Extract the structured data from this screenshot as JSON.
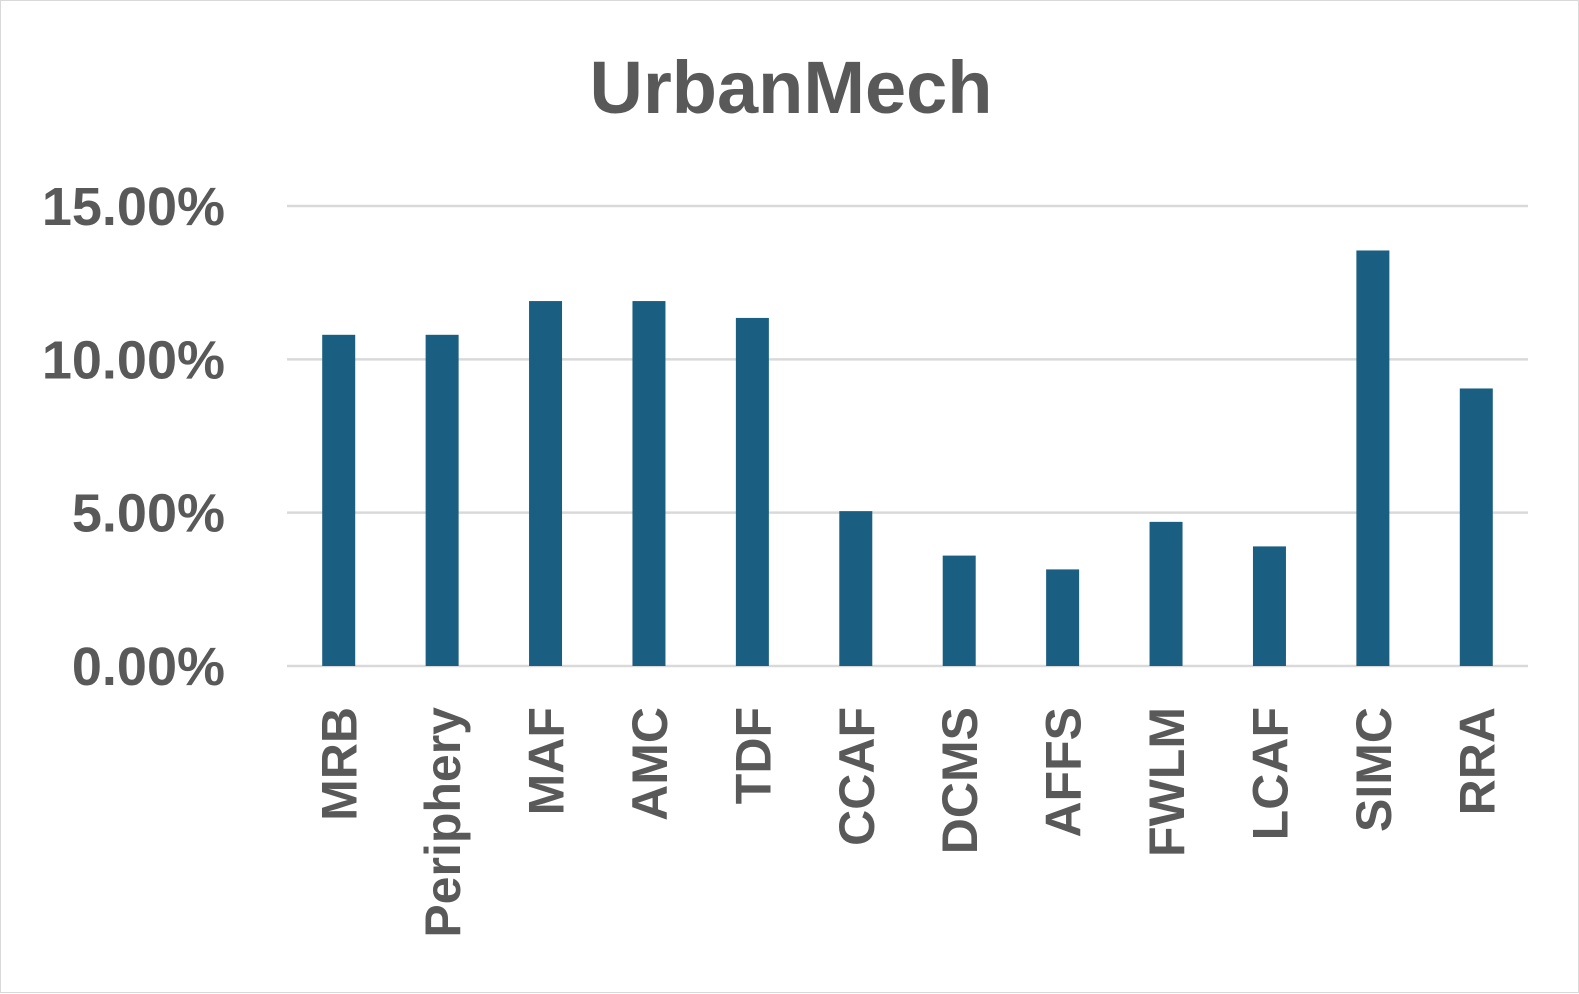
{
  "chart_data": {
    "type": "bar",
    "title": "UrbanMech",
    "xlabel": "",
    "ylabel": "",
    "categories": [
      "MRB",
      "Periphery",
      "MAF",
      "AMC",
      "TDF",
      "CCAF",
      "DCMS",
      "AFFS",
      "FWLM",
      "LCAF",
      "SIMC",
      "RRA"
    ],
    "values": [
      10.8,
      10.8,
      11.9,
      11.9,
      11.35,
      5.05,
      3.6,
      3.15,
      4.7,
      3.9,
      13.55,
      9.05
    ],
    "ylim": [
      0,
      15
    ],
    "yticks": [
      0,
      5,
      10,
      15
    ],
    "ytick_labels": [
      "0.00%",
      "5.00%",
      "10.00%",
      "15.00%"
    ],
    "grid": true,
    "legend": "none",
    "bar_color": "#1a5f82"
  }
}
